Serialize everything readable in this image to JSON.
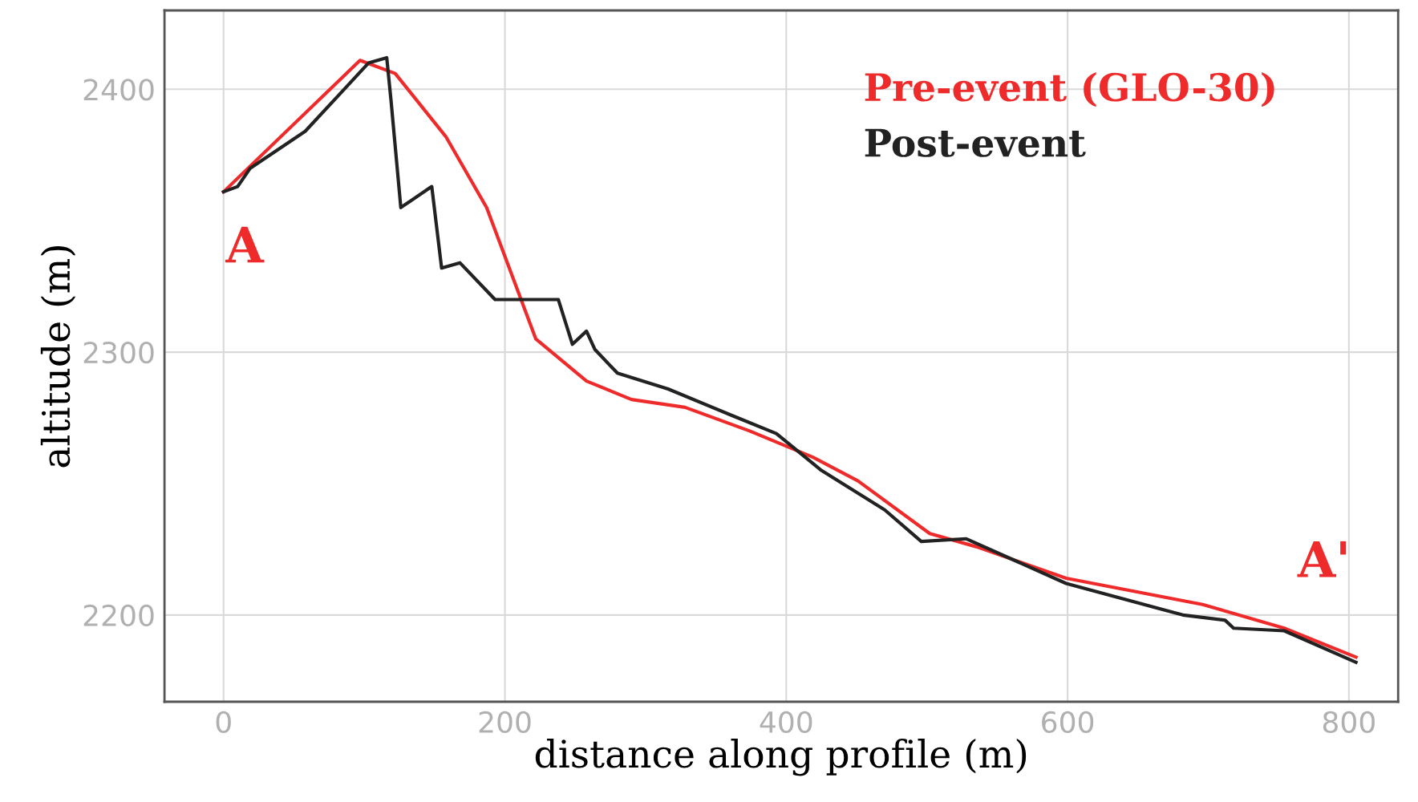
{
  "chart_data": {
    "type": "line",
    "xlabel": "distance along profile (m)",
    "ylabel": "altitude (m)",
    "xlim": [
      -42,
      835
    ],
    "ylim": [
      2167,
      2430
    ],
    "xticks": [
      0,
      200,
      400,
      600,
      800
    ],
    "yticks": [
      2200,
      2300,
      2400
    ],
    "grid": true,
    "legend": "top right",
    "line_style": "solid",
    "marker": "none",
    "series": [
      {
        "name": "Pre-event (GLO-30)",
        "color": "#ee2a2a",
        "x": [
          0,
          97,
          122,
          158,
          187,
          222,
          258,
          290,
          328,
          374,
          419,
          451,
          502,
          535,
          599,
          696,
          754,
          805
        ],
        "values": [
          2361,
          2411,
          2406,
          2382,
          2355,
          2305,
          2289,
          2282,
          2279,
          2270,
          2260,
          2251,
          2231,
          2226,
          2214,
          2204,
          2195,
          2184
        ]
      },
      {
        "name": "Post-event",
        "color": "#222222",
        "x": [
          0,
          10,
          19,
          58,
          84,
          103,
          116,
          119,
          126,
          148,
          155,
          168,
          193,
          238,
          248,
          258,
          264,
          280,
          316,
          361,
          393,
          425,
          470,
          496,
          528,
          599,
          682,
          712,
          718,
          754,
          805
        ],
        "values": [
          2361,
          2363,
          2370,
          2384,
          2399,
          2410,
          2412,
          2396,
          2355,
          2363,
          2332,
          2334,
          2320,
          2320,
          2303,
          2308,
          2301,
          2292,
          2286,
          2276,
          2269,
          2255,
          2240,
          2228,
          2229,
          2212,
          2200,
          2198,
          2195,
          2194,
          2182
        ]
      }
    ],
    "annotations": [
      "A",
      "A'"
    ]
  }
}
